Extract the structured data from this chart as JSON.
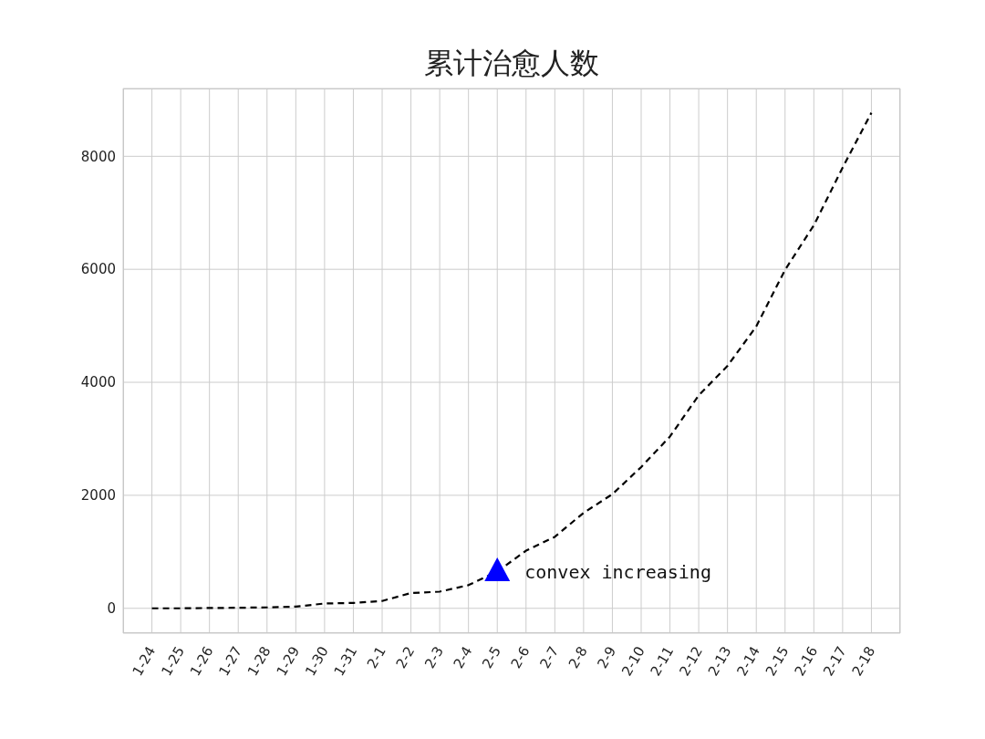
{
  "chart_data": {
    "type": "line",
    "title": "累计治愈人数",
    "categories": [
      "1-24",
      "1-25",
      "1-26",
      "1-27",
      "1-28",
      "1-29",
      "1-30",
      "1-31",
      "2-1",
      "2-2",
      "2-3",
      "2-4",
      "2-5",
      "2-6",
      "2-7",
      "2-8",
      "2-9",
      "2-10",
      "2-11",
      "2-12",
      "2-13",
      "2-14",
      "2-15",
      "2-16",
      "2-17",
      "2-18"
    ],
    "series": [
      {
        "color": "#000000",
        "line_style": "dashed",
        "marker": "none",
        "values": [
          0,
          0,
          5,
          10,
          16,
          30,
          85,
          95,
          130,
          270,
          295,
          410,
          650,
          1020,
          1265,
          1690,
          2020,
          2500,
          3040,
          3770,
          4290,
          4990,
          5990,
          6780,
          7800,
          8770
        ]
      },
      {
        "type": "scatter",
        "color": "#0000ff",
        "marker": "triangle",
        "x": [
          "2-5"
        ],
        "values": [
          640
        ]
      }
    ],
    "annotations": [
      {
        "text": "convex increasing",
        "x": "2-5",
        "y": 640
      }
    ],
    "ylim": [
      -440,
      9200
    ],
    "yticks": [
      0,
      2000,
      4000,
      6000,
      8000
    ],
    "grid": true,
    "legend": false
  }
}
